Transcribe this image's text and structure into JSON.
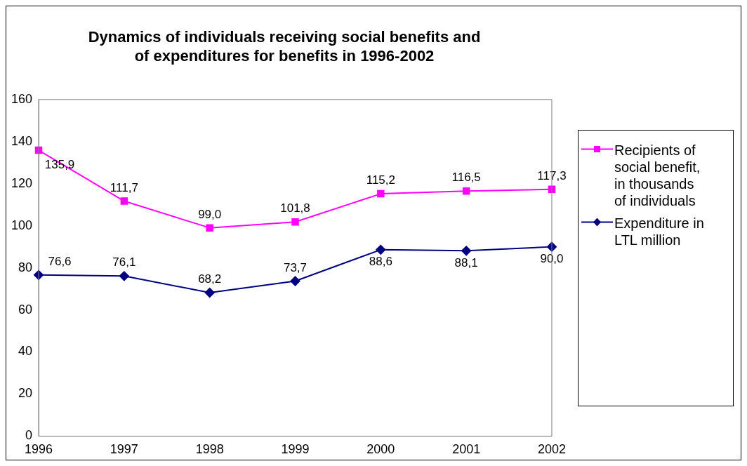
{
  "chart_data": {
    "type": "line",
    "title": "Dynamics of individuals receiving social benefits and\nof expenditures for benefits in 1996-2002",
    "categories": [
      "1996",
      "1997",
      "1998",
      "1999",
      "2000",
      "2001",
      "2002"
    ],
    "series": [
      {
        "name": "Recipients of social benefit, in thousands of individuals",
        "color": "#ff00ff",
        "marker": "square",
        "values": [
          135.9,
          111.7,
          99.0,
          101.8,
          115.2,
          116.5,
          117.3
        ],
        "value_labels": [
          "135,9",
          "111,7",
          "99,0",
          "101,8",
          "115,2",
          "116,5",
          "117,3"
        ]
      },
      {
        "name": "Expenditure in LTL million",
        "color": "#000080",
        "marker": "diamond",
        "values": [
          76.6,
          76.1,
          68.2,
          73.7,
          88.6,
          88.1,
          90.0
        ],
        "value_labels": [
          "76,6",
          "76,1",
          "68,2",
          "73,7",
          "88,6",
          "88,1",
          "90,0"
        ]
      }
    ],
    "ylim": [
      0,
      160
    ],
    "yticks": [
      0,
      20,
      40,
      60,
      80,
      100,
      120,
      140,
      160
    ],
    "grid": false,
    "legend": "right",
    "line_style": "solid"
  }
}
